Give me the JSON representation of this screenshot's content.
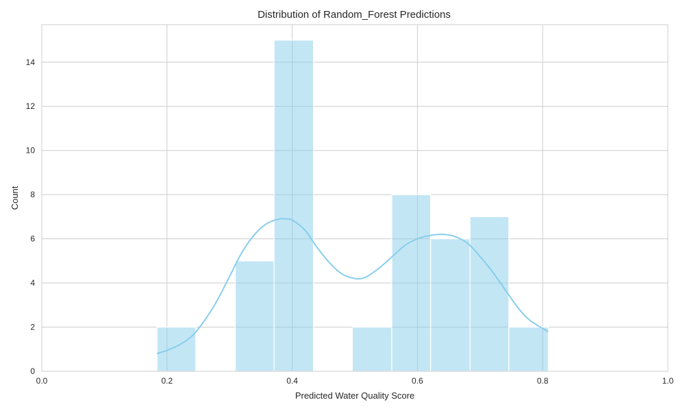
{
  "chart_data": {
    "type": "bar",
    "title": "Distribution of Random_Forest Predictions",
    "xlabel": "Predicted Water Quality Score",
    "ylabel": "Count",
    "xlim": [
      0.0,
      1.0
    ],
    "ylim": [
      0,
      15.7
    ],
    "xticks": [
      "0.0",
      "0.2",
      "0.4",
      "0.6",
      "0.8",
      "1.0"
    ],
    "yticks": [
      "0",
      "2",
      "4",
      "6",
      "8",
      "10",
      "12",
      "14"
    ],
    "grid": true,
    "bins": [
      {
        "x0": 0.184,
        "x1": 0.246,
        "count": 2
      },
      {
        "x0": 0.246,
        "x1": 0.309,
        "count": 0
      },
      {
        "x0": 0.309,
        "x1": 0.371,
        "count": 5
      },
      {
        "x0": 0.371,
        "x1": 0.434,
        "count": 15
      },
      {
        "x0": 0.434,
        "x1": 0.496,
        "count": 0
      },
      {
        "x0": 0.496,
        "x1": 0.559,
        "count": 2
      },
      {
        "x0": 0.559,
        "x1": 0.621,
        "count": 8
      },
      {
        "x0": 0.621,
        "x1": 0.684,
        "count": 6
      },
      {
        "x0": 0.684,
        "x1": 0.746,
        "count": 7
      },
      {
        "x0": 0.746,
        "x1": 0.809,
        "count": 2
      }
    ],
    "kde": {
      "x": [
        0.184,
        0.2,
        0.22,
        0.24,
        0.26,
        0.28,
        0.3,
        0.32,
        0.34,
        0.36,
        0.38,
        0.39,
        0.4,
        0.42,
        0.44,
        0.46,
        0.48,
        0.5,
        0.51,
        0.52,
        0.54,
        0.56,
        0.58,
        0.6,
        0.62,
        0.64,
        0.66,
        0.68,
        0.7,
        0.72,
        0.74,
        0.76,
        0.78,
        0.809
      ],
      "y": [
        0.8,
        0.95,
        1.2,
        1.6,
        2.3,
        3.2,
        4.3,
        5.4,
        6.2,
        6.7,
        6.9,
        6.9,
        6.85,
        6.4,
        5.6,
        4.9,
        4.4,
        4.2,
        4.2,
        4.3,
        4.7,
        5.2,
        5.7,
        6.0,
        6.15,
        6.2,
        6.1,
        5.8,
        5.2,
        4.5,
        3.7,
        2.9,
        2.3,
        1.8
      ]
    },
    "colors": {
      "bar": "#87ceeb",
      "kde": "#87ceeb",
      "grid": "#cccccc"
    }
  }
}
